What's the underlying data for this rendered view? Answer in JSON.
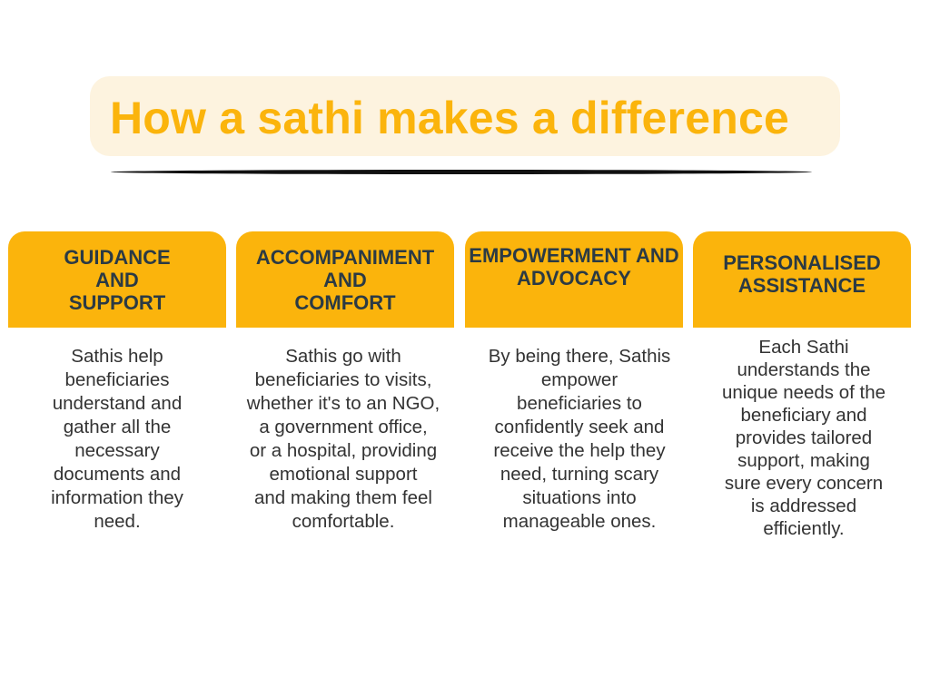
{
  "title": "How a sathi makes a difference",
  "colors": {
    "accent": "#fbb40c",
    "title_bg": "#fdf3df",
    "heading_text": "#2b3a44",
    "body_text": "#333333"
  },
  "cards": [
    {
      "heading": "GUIDANCE\nAND\nSUPPORT",
      "body": "Sathis help\nbeneficiaries\nunderstand and\ngather all the\nnecessary\ndocuments and\ninformation they\nneed."
    },
    {
      "heading": "ACCOMPANIMENT\nAND\nCOMFORT",
      "body": "Sathis go with\nbeneficiaries to visits,\nwhether it's to an NGO,\na government office,\nor a hospital, providing\nemotional support\nand making them feel\ncomfortable."
    },
    {
      "heading": "EMPOWERMENT AND\nADVOCACY",
      "body": "By being there, Sathis\nempower\nbeneficiaries to\nconfidently seek and\nreceive the help they\nneed, turning scary\nsituations into\nmanageable ones."
    },
    {
      "heading": "PERSONALISED\nASSISTANCE",
      "body": "Each Sathi\nunderstands the\nunique needs of the\nbeneficiary and\nprovides tailored\nsupport, making\nsure every concern\nis addressed\nefficiently."
    }
  ]
}
